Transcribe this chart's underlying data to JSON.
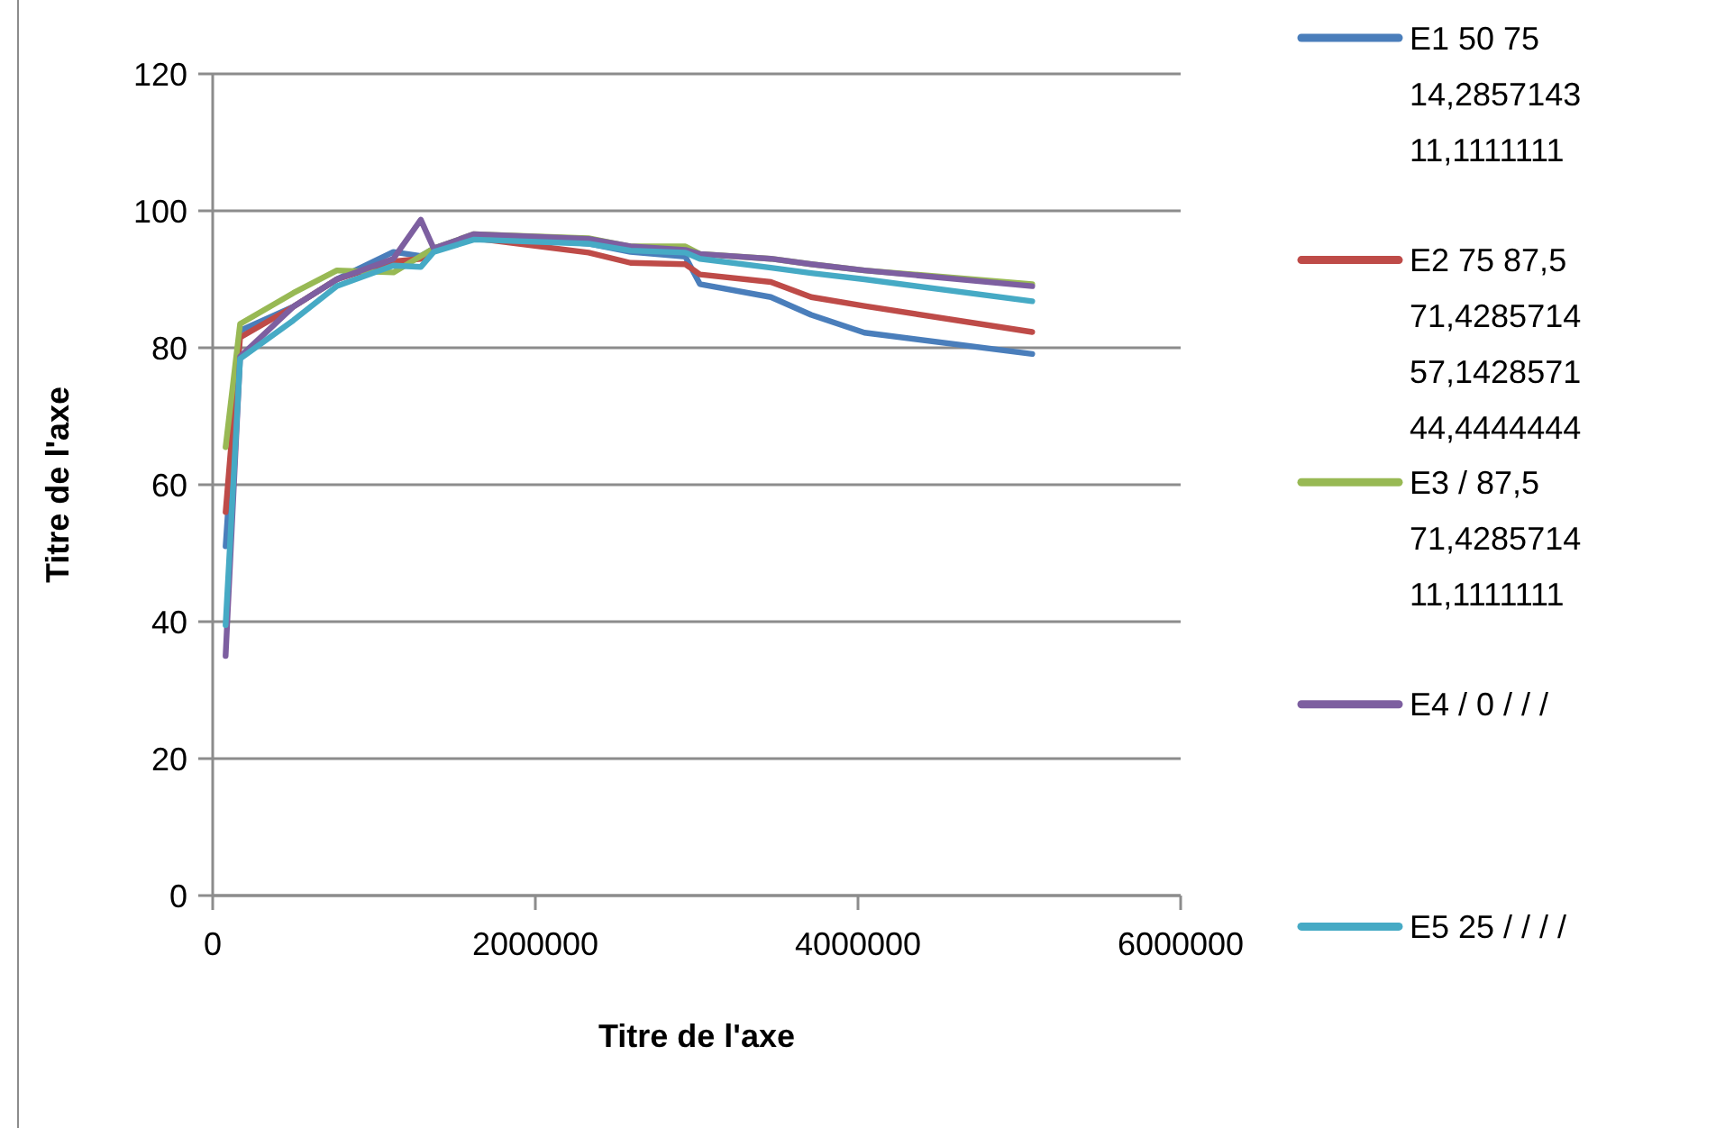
{
  "chart_data": {
    "type": "line",
    "xlabel": "Titre de l'axe",
    "ylabel": "Titre de l'axe",
    "x": [
      80000,
      170000,
      500000,
      770000,
      1120000,
      1290000,
      1370000,
      1620000,
      2330000,
      2590000,
      2930000,
      3020000,
      3460000,
      3710000,
      4040000,
      5080000
    ],
    "series": [
      {
        "name": "E1 50 75 14,2857143 11,1111111",
        "color": "#4a7ebb",
        "values": [
          51,
          82.5,
          86,
          90,
          94,
          93.4,
          94.5,
          96.5,
          95.2,
          94,
          93.3,
          89.3,
          87.4,
          84.8,
          82.2,
          79.1
        ]
      },
      {
        "name": "E2 75 87,5 71,4285714 57,1428571 44,4444444",
        "color": "#be4b48",
        "values": [
          56,
          81.5,
          86,
          90,
          92.6,
          93,
          94.5,
          96,
          93.9,
          92.4,
          92.2,
          90.7,
          89.6,
          87.4,
          86.1,
          82.3
        ]
      },
      {
        "name": "E3 / 87,5 71,4285714 11,1111111",
        "color": "#98b954",
        "values": [
          65.5,
          83.5,
          88,
          91.3,
          91,
          93.4,
          94.5,
          96.6,
          96,
          94.8,
          94.8,
          93.7,
          93,
          92.2,
          91.3,
          89.3
        ]
      },
      {
        "name": "E4 / 0 / / /",
        "color": "#7d5fa0",
        "values": [
          35,
          78.7,
          86,
          90,
          93,
          98.7,
          94.5,
          96.6,
          95.9,
          94.8,
          94.3,
          93.7,
          93,
          92.2,
          91.3,
          89
        ]
      },
      {
        "name": "E5 25 / / / /",
        "color": "#46aac5",
        "values": [
          39.5,
          78.4,
          84,
          89,
          92,
          91.8,
          94,
          95.8,
          95.2,
          94.2,
          93.9,
          93,
          91.7,
          90.9,
          90,
          86.8
        ]
      }
    ],
    "xlim": [
      0,
      6000000
    ],
    "xticks": [
      0,
      2000000,
      4000000,
      6000000
    ],
    "ylim": [
      0,
      120
    ],
    "yticks": [
      0,
      20,
      40,
      60,
      80,
      100,
      120
    ],
    "grid": "y",
    "legend": "right",
    "marker": "none",
    "line_style": "solid"
  }
}
